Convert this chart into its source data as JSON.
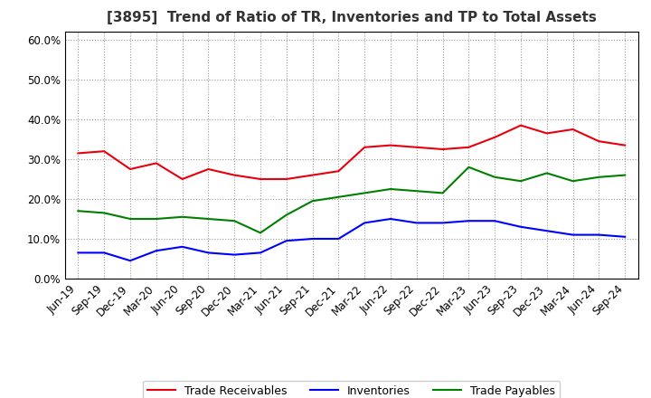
{
  "title": "[3895]  Trend of Ratio of TR, Inventories and TP to Total Assets",
  "x_labels": [
    "Jun-19",
    "Sep-19",
    "Dec-19",
    "Mar-20",
    "Jun-20",
    "Sep-20",
    "Dec-20",
    "Mar-21",
    "Jun-21",
    "Sep-21",
    "Dec-21",
    "Mar-22",
    "Jun-22",
    "Sep-22",
    "Dec-22",
    "Mar-23",
    "Jun-23",
    "Sep-23",
    "Dec-23",
    "Mar-24",
    "Jun-24",
    "Sep-24"
  ],
  "trade_receivables": [
    0.315,
    0.32,
    0.275,
    0.29,
    0.25,
    0.275,
    0.26,
    0.25,
    0.25,
    0.26,
    0.27,
    0.33,
    0.335,
    0.33,
    0.325,
    0.33,
    0.355,
    0.385,
    0.365,
    0.375,
    0.345,
    0.335
  ],
  "inventories": [
    0.065,
    0.065,
    0.045,
    0.07,
    0.08,
    0.065,
    0.06,
    0.065,
    0.095,
    0.1,
    0.1,
    0.14,
    0.15,
    0.14,
    0.14,
    0.145,
    0.145,
    0.13,
    0.12,
    0.11,
    0.11,
    0.105
  ],
  "trade_payables": [
    0.17,
    0.165,
    0.15,
    0.15,
    0.155,
    0.15,
    0.145,
    0.115,
    0.16,
    0.195,
    0.205,
    0.215,
    0.225,
    0.22,
    0.215,
    0.28,
    0.255,
    0.245,
    0.265,
    0.245,
    0.255,
    0.26
  ],
  "tr_color": "#e8000d",
  "inv_color": "#0000ff",
  "tp_color": "#008000",
  "ylim": [
    0.0,
    0.62
  ],
  "yticks": [
    0.0,
    0.1,
    0.2,
    0.3,
    0.4,
    0.5,
    0.6
  ],
  "background_color": "#ffffff",
  "grid_color": "#999999",
  "legend_labels": [
    "Trade Receivables",
    "Inventories",
    "Trade Payables"
  ],
  "title_fontsize": 11,
  "tick_fontsize": 8.5,
  "legend_fontsize": 9
}
